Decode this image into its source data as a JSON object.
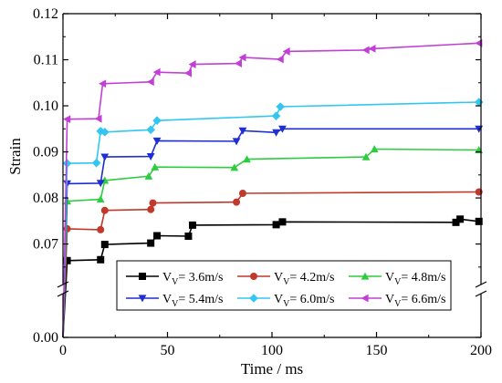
{
  "chart_data": {
    "type": "line",
    "xlabel": "Time / ms",
    "ylabel": "Strain",
    "xlim": [
      0,
      200
    ],
    "ylim_lower": [
      0.0,
      0.002
    ],
    "ylim_upper": [
      0.062,
      0.12
    ],
    "axis_break": "y",
    "x_ticks": [
      0,
      50,
      100,
      150,
      200
    ],
    "y_ticks": [
      0.0,
      0.07,
      0.08,
      0.09,
      0.1,
      0.11,
      0.12
    ],
    "x_tick_labels": [
      "0",
      "50",
      "100",
      "150",
      "200"
    ],
    "y_tick_labels": [
      "0.00",
      "0.07",
      "0.08",
      "0.09",
      "0.10",
      "0.11",
      "0.12"
    ],
    "legend_position": "bottom-center",
    "series": [
      {
        "name": "V",
        "name_sub": "V",
        "name_rest": "= 3.6m/s",
        "color": "#000000",
        "marker": "square",
        "x": [
          0,
          2,
          18,
          20,
          42,
          45,
          60,
          62,
          102,
          105,
          188,
          190,
          199
        ],
        "y": [
          0,
          0.0664,
          0.0666,
          0.0699,
          0.0702,
          0.0718,
          0.0717,
          0.0741,
          0.0742,
          0.0748,
          0.0747,
          0.0754,
          0.0749
        ]
      },
      {
        "name": "V",
        "name_sub": "V",
        "name_rest": "= 4.2m/s",
        "color": "#c0392b",
        "marker": "circle",
        "x": [
          0,
          2,
          18,
          20,
          42,
          43,
          83,
          86,
          199
        ],
        "y": [
          0,
          0.0733,
          0.0731,
          0.0773,
          0.0775,
          0.0789,
          0.0791,
          0.081,
          0.0813
        ]
      },
      {
        "name": "V",
        "name_sub": "V",
        "name_rest": "= 4.8m/s",
        "color": "#2ecc40",
        "marker": "triangle-up",
        "x": [
          0,
          2,
          18,
          20,
          41,
          44,
          82,
          88,
          145,
          149,
          199
        ],
        "y": [
          0,
          0.0793,
          0.0797,
          0.0838,
          0.0847,
          0.0867,
          0.0866,
          0.0884,
          0.0889,
          0.0906,
          0.0904
        ]
      },
      {
        "name": "V",
        "name_sub": "V",
        "name_rest": "= 5.4m/s",
        "color": "#1f2fd0",
        "marker": "triangle-down",
        "x": [
          0,
          2,
          18,
          20,
          42,
          45,
          83,
          86,
          102,
          105,
          199
        ],
        "y": [
          0,
          0.0831,
          0.0832,
          0.0889,
          0.089,
          0.0924,
          0.0923,
          0.0946,
          0.0942,
          0.095,
          0.095
        ]
      },
      {
        "name": "V",
        "name_sub": "V",
        "name_rest": "= 6.0m/s",
        "color": "#33c6f0",
        "marker": "diamond",
        "x": [
          0,
          2,
          16,
          18,
          20,
          42,
          45,
          102,
          104,
          199
        ],
        "y": [
          0,
          0.0875,
          0.0876,
          0.0945,
          0.0943,
          0.0948,
          0.0968,
          0.0978,
          0.0998,
          0.1008
        ]
      },
      {
        "name": "V",
        "name_sub": "V",
        "name_rest": "= 6.6m/s",
        "color": "#c23fd6",
        "marker": "triangle-left",
        "x": [
          0,
          2,
          17,
          19,
          42,
          45,
          60,
          62,
          84,
          86,
          104,
          107,
          145,
          148,
          199
        ],
        "y": [
          0,
          0.0971,
          0.0972,
          0.1048,
          0.1052,
          0.1073,
          0.1071,
          0.109,
          0.1092,
          0.1105,
          0.1101,
          0.1118,
          0.1121,
          0.1124,
          0.1136
        ]
      }
    ]
  }
}
